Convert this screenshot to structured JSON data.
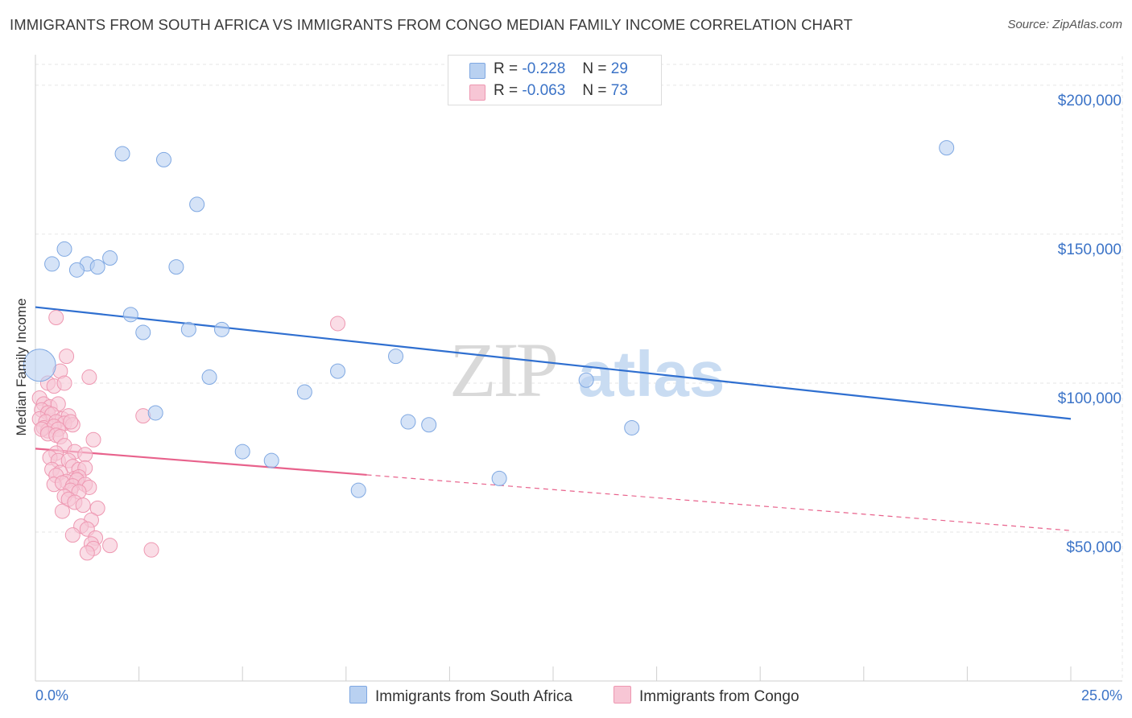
{
  "title": "IMMIGRANTS FROM SOUTH AFRICA VS IMMIGRANTS FROM CONGO MEDIAN FAMILY INCOME CORRELATION CHART",
  "source": "Source: ZipAtlas.com",
  "watermark": {
    "zip": "ZIP",
    "atlas": "atlas"
  },
  "colors": {
    "blue_fill": "#b9d1f1",
    "blue_stroke": "#7fa8e2",
    "blue_line": "#2f6fd0",
    "pink_fill": "#f7c6d5",
    "pink_stroke": "#ee97b1",
    "pink_line": "#e8628c",
    "axis_text": "#3b73c7",
    "grid": "#e6e6e6"
  },
  "stats": [
    {
      "r_label": "R =",
      "r_value": "-0.228",
      "n_label": "N =",
      "n_value": "29",
      "color": "blue"
    },
    {
      "r_label": "R =",
      "r_value": "-0.063",
      "n_label": "N =",
      "n_value": "73",
      "color": "pink"
    }
  ],
  "legend": [
    {
      "label": "Immigrants from South Africa",
      "color": "blue"
    },
    {
      "label": "Immigrants from Congo",
      "color": "pink"
    }
  ],
  "chart_data": {
    "type": "scatter",
    "xlabel": "",
    "ylabel": "Median Family Income",
    "xlim": [
      0,
      25
    ],
    "ylim": [
      0,
      207000
    ],
    "x_tick_labels": {
      "min": "0.0%",
      "max": "25.0%"
    },
    "x_minor_ticks": [
      2.5,
      5,
      7.5,
      10,
      12.5,
      15,
      17.5,
      20,
      22.5,
      25
    ],
    "y_ticks": [
      50000,
      100000,
      150000,
      200000
    ],
    "y_tick_labels": [
      "$50,000",
      "$100,000",
      "$150,000",
      "$200,000"
    ],
    "grid": true,
    "series": [
      {
        "name": "Immigrants from South Africa",
        "color": "blue",
        "points": [
          [
            0.1,
            106000,
            2
          ],
          [
            2.1,
            177000,
            1
          ],
          [
            3.1,
            175000,
            1
          ],
          [
            3.9,
            160000,
            1
          ],
          [
            0.7,
            145000,
            1
          ],
          [
            0.4,
            140000,
            1
          ],
          [
            1.25,
            140000,
            1
          ],
          [
            1.8,
            142000,
            1
          ],
          [
            1.0,
            138000,
            1
          ],
          [
            1.5,
            139000,
            1
          ],
          [
            3.4,
            139000,
            1
          ],
          [
            2.3,
            123000,
            1
          ],
          [
            2.6,
            117000,
            1
          ],
          [
            3.7,
            118000,
            1
          ],
          [
            4.5,
            118000,
            1
          ],
          [
            8.7,
            109000,
            1
          ],
          [
            7.3,
            104000,
            1
          ],
          [
            4.2,
            102000,
            1
          ],
          [
            13.3,
            101000,
            1
          ],
          [
            6.5,
            97000,
            1
          ],
          [
            2.9,
            90000,
            1
          ],
          [
            9.0,
            87000,
            1
          ],
          [
            9.5,
            86000,
            1
          ],
          [
            14.4,
            85000,
            1
          ],
          [
            5.0,
            77000,
            1
          ],
          [
            5.7,
            74000,
            1
          ],
          [
            11.2,
            68000,
            1
          ],
          [
            7.8,
            64000,
            1
          ],
          [
            22.0,
            179000,
            1
          ]
        ],
        "trend": {
          "x0": 0,
          "y0": 125500,
          "x1": 25,
          "y1": 88000,
          "dashed_from": null
        }
      },
      {
        "name": "Immigrants from Congo",
        "color": "pink",
        "points": [
          [
            0.5,
            122000,
            1
          ],
          [
            7.3,
            120000,
            1
          ],
          [
            0.75,
            109000,
            1
          ],
          [
            0.6,
            104000,
            1
          ],
          [
            1.3,
            102000,
            1
          ],
          [
            0.3,
            100000,
            1
          ],
          [
            0.45,
            99000,
            1
          ],
          [
            0.7,
            100000,
            1
          ],
          [
            0.1,
            95000,
            1
          ],
          [
            0.2,
            93000,
            1
          ],
          [
            0.35,
            92000,
            1
          ],
          [
            0.55,
            93000,
            1
          ],
          [
            0.15,
            91000,
            1
          ],
          [
            0.3,
            90000,
            1
          ],
          [
            0.4,
            89500,
            1
          ],
          [
            0.65,
            88000,
            1
          ],
          [
            0.8,
            89000,
            1
          ],
          [
            0.1,
            88000,
            1
          ],
          [
            0.25,
            87000,
            1
          ],
          [
            0.5,
            87000,
            1
          ],
          [
            0.7,
            86500,
            1
          ],
          [
            0.9,
            86000,
            1
          ],
          [
            0.2,
            85000,
            1
          ],
          [
            0.3,
            84000,
            1
          ],
          [
            0.45,
            85500,
            1
          ],
          [
            0.55,
            84500,
            1
          ],
          [
            0.85,
            87000,
            1
          ],
          [
            0.15,
            84500,
            1
          ],
          [
            0.3,
            83000,
            1
          ],
          [
            0.5,
            82500,
            1
          ],
          [
            2.6,
            89000,
            1
          ],
          [
            0.6,
            82000,
            1
          ],
          [
            1.4,
            81000,
            1
          ],
          [
            0.7,
            79000,
            1
          ],
          [
            0.95,
            77000,
            1
          ],
          [
            0.5,
            76500,
            1
          ],
          [
            1.2,
            76000,
            1
          ],
          [
            0.35,
            75000,
            1
          ],
          [
            0.55,
            74000,
            1
          ],
          [
            0.8,
            74000,
            1
          ],
          [
            0.4,
            71000,
            1
          ],
          [
            0.9,
            72000,
            1
          ],
          [
            1.05,
            71000,
            1
          ],
          [
            1.2,
            71500,
            1
          ],
          [
            0.6,
            70000,
            1
          ],
          [
            0.95,
            68000,
            1
          ],
          [
            0.5,
            69000,
            1
          ],
          [
            1.05,
            68500,
            1
          ],
          [
            0.75,
            67000,
            1
          ],
          [
            1.0,
            67500,
            1
          ],
          [
            0.45,
            66000,
            1
          ],
          [
            0.65,
            66500,
            1
          ],
          [
            0.9,
            65500,
            1
          ],
          [
            1.2,
            66000,
            1
          ],
          [
            1.3,
            65000,
            1
          ],
          [
            0.85,
            64000,
            1
          ],
          [
            1.05,
            63500,
            1
          ],
          [
            0.7,
            62000,
            1
          ],
          [
            0.8,
            61000,
            1
          ],
          [
            0.95,
            60000,
            1
          ],
          [
            1.15,
            59000,
            1
          ],
          [
            1.5,
            58000,
            1
          ],
          [
            0.65,
            57000,
            1
          ],
          [
            1.35,
            54000,
            1
          ],
          [
            1.1,
            52000,
            1
          ],
          [
            1.25,
            51000,
            1
          ],
          [
            0.9,
            49000,
            1
          ],
          [
            1.45,
            48000,
            1
          ],
          [
            1.35,
            46000,
            1
          ],
          [
            1.8,
            45500,
            1
          ],
          [
            1.4,
            44500,
            1
          ],
          [
            2.8,
            44000,
            1
          ],
          [
            1.25,
            43000,
            1
          ]
        ],
        "trend": {
          "x0": 0,
          "y0": 78000,
          "x1": 25,
          "y1": 50500,
          "dashed_from": 8
        }
      }
    ]
  }
}
